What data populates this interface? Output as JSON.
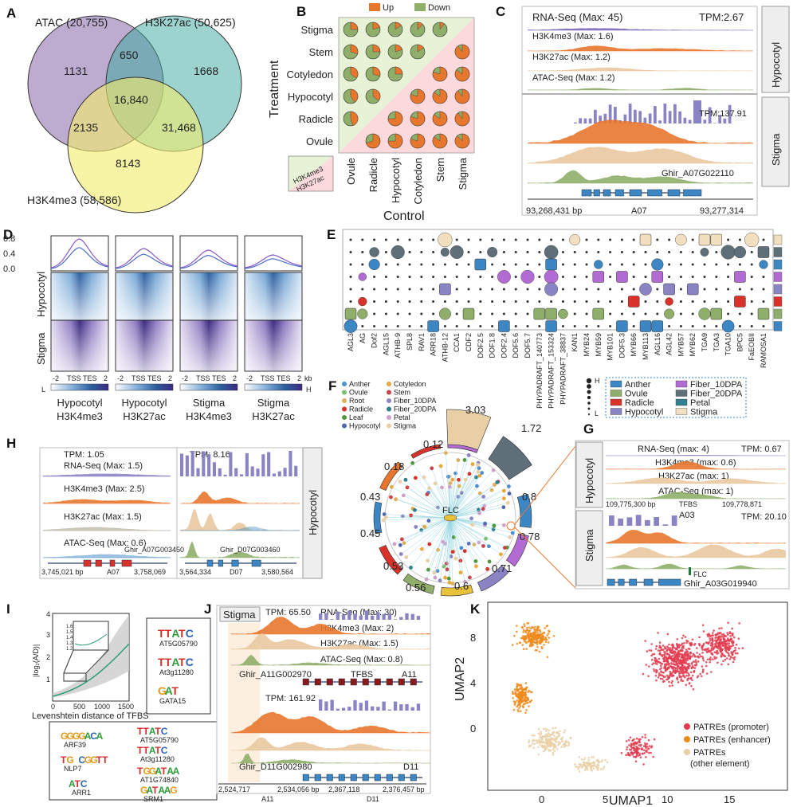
{
  "colors": {
    "purple": "#7b68b8",
    "orange": "#e8772e",
    "tan": "#e9c9a0",
    "green": "#8fae6a",
    "blue": "#3c86c4",
    "red": "#d9322b",
    "slate": "#5e6f7a",
    "violet": "#b26bd3",
    "teal": "#2f7f8f",
    "lav": "#8a84c4",
    "beige": "#f2dfbf"
  },
  "panelA": {
    "label": "A",
    "sets": [
      "ATAC (20,755)",
      "H3K27ac (50,625)",
      "H3K4me3 (58,586)"
    ],
    "regions": [
      "1131",
      "650",
      "1668",
      "16,840",
      "2135",
      "31,468",
      "8143"
    ]
  },
  "panelB": {
    "label": "B",
    "legend": [
      "Up",
      "Down"
    ],
    "rows": [
      "Stigma",
      "Stem",
      "Cotyledon",
      "Hypocotyl",
      "Radicle",
      "Ovule"
    ],
    "cols": [
      "Ovule",
      "Radicle",
      "Hypocotyl",
      "Cotyledon",
      "Stem",
      "Stigma"
    ],
    "ylabel": "Treatment",
    "xlabel": "Control",
    "key": [
      "H3K4me3",
      "H3K27ac"
    ]
  },
  "panelC": {
    "label": "C",
    "hyp_tracks": [
      "RNA-Seq (Max: 45)",
      "H3K4me3 (Max: 1.6)",
      "H3K27ac (Max: 1.2)",
      "ATAC-Seq (Max: 1.2)"
    ],
    "tpm_hyp": "TPM:2.67",
    "tpm_stigma": "TPM:137.91",
    "gene": "Ghir_A07G022110",
    "coord_start": "93,268,431 bp",
    "chrom": "A07",
    "coord_end": "93,277,314",
    "tissue1": "Hypocotyl",
    "tissue2": "Stigma"
  },
  "panelD": {
    "label": "D",
    "yticks": [
      "0.8",
      "0.4",
      "0.0"
    ],
    "rows": [
      "Hypocotyl",
      "Stigma"
    ],
    "xaxis": [
      "-2",
      "TSS",
      "TES",
      "2"
    ],
    "xunit": "kb",
    "scale": [
      "L",
      "H"
    ],
    "cols": [
      {
        "l1": "Hypocotyl",
        "l2": "H3K4me3"
      },
      {
        "l1": "Hypocotyl",
        "l2": "H3K27ac"
      },
      {
        "l1": "Stigma",
        "l2": "H3K4me3"
      },
      {
        "l1": "Stigma",
        "l2": "H3K27ac"
      }
    ]
  },
  "panelE": {
    "label": "E",
    "tfs": [
      "AGL3",
      "AG",
      "Dof2",
      "AGL15",
      "ATHB-9",
      "SPL8",
      "RAV1",
      "ARR18",
      "ATHB-12",
      "CCA1",
      "CDF2",
      "DOF2.5",
      "DOF1.8",
      "DOF2.4",
      "DOF5.6",
      "DOF5.7",
      "PHYPADRAFT_140773",
      "PHYPADRAFT_153324",
      "PHYPADRAFT_38837",
      "KAN1",
      "MYB24",
      "MYB59",
      "MYB101",
      "DOF5.3",
      "MYB66",
      "MYB113",
      "AGL16",
      "AGL42",
      "MYB57",
      "MYB62",
      "TGA9",
      "TGA3",
      "TGA10",
      "BPC5",
      "FaEOBII",
      "RAMOSA1"
    ],
    "size_key": [
      "H",
      "L"
    ],
    "legend": [
      "Anther",
      "Ovule",
      "Radicle",
      "Hypocotyl",
      "Fiber_10DPA",
      "Fiber_20DPA",
      "Petal",
      "Stigma"
    ]
  },
  "panelF": {
    "label": "F",
    "legend": [
      "Anther",
      "Cotyledon",
      "Ovule",
      "Stem",
      "Root",
      "Fiber_10DPA",
      "Radicle",
      "Fiber_20DPA",
      "Leaf",
      "Petal",
      "Hypocotyl",
      "Stigma"
    ],
    "center": "FLC",
    "values": [
      "3.03",
      "1.72",
      "0.8",
      "0.78",
      "0.71",
      "0.6",
      "0.56",
      "0.53",
      "0.45",
      "0.43",
      "0.18",
      "0.12"
    ]
  },
  "panelG": {
    "label": "G",
    "tracks": [
      "RNA-Seq (max: 4)",
      "H3K4me3 (max: 0.6)",
      "H3K27ac (max: 1)",
      "ATAC-Seq (max: 1)"
    ],
    "tpm1": "TPM: 0.67",
    "tpm2": "TPM: 20.10",
    "coord_start": "109,775,300 bp",
    "tfbs": "TFBS",
    "coord_end": "109,778,871",
    "chrom": "A03",
    "flc": "FLC",
    "gene": "Ghir_A03G019940",
    "tissue1": "Hypocotyl",
    "tissue2": "Stigma"
  },
  "panelH": {
    "label": "H",
    "tpm1": "TPM: 1.05",
    "tpm2": "TPM: 8.16",
    "tracks": [
      "RNA-Seq (Max: 1.5)",
      "H3K4me3 (Max: 2.5)",
      "H3K27ac (Max: 1.5)",
      "ATAC-Seq (Max: 0.6)"
    ],
    "gene1": "Ghir_A07G003450",
    "gene2": "Ghir_D07G003460",
    "c1": "3,745,021 bp",
    "chr1": "A07",
    "c2": "3,758,069",
    "c3": "3,564,334",
    "chr2": "D07",
    "c4": "3,580,564",
    "tissue": "Hypocotyl"
  },
  "panelI": {
    "label": "I",
    "ylabel": "|log₂(A/D)|",
    "xlabel": "Levenshtein distance of TFBS",
    "yticks": [
      "4",
      "3",
      "2",
      "1"
    ],
    "xticks": [
      "0",
      "500",
      "1000",
      "1500"
    ],
    "inset_yticks": [
      "1.6",
      "1.5",
      "1.4",
      "1.3",
      "1.2"
    ],
    "motifs_small": [
      {
        "logo": "TTATC",
        "name": "AT5G05790"
      },
      {
        "logo": "TTATC",
        "name": "At3g11280"
      },
      {
        "logo": "GAT",
        "name": "GATA15"
      }
    ],
    "motifs_big": [
      {
        "logo": "GGGGACA",
        "name": "ARF39"
      },
      {
        "logo": "TTATC",
        "name": "AT5G05790"
      },
      {
        "logo": "TG CGGTT",
        "name": "NLP7"
      },
      {
        "logo": "TTATC",
        "name": "At3g11280"
      },
      {
        "logo": "ATC",
        "name": "ARR1"
      },
      {
        "logo": "TGGATAA",
        "name": "AT1G74840"
      },
      {
        "logo": "GATAAG",
        "name": "SRM1"
      }
    ]
  },
  "panelJ": {
    "label": "J",
    "tissue": "Stigma",
    "tpm1": "TPM: 65.50",
    "tpm2": "TPM: 161.92",
    "tracks": [
      "RNA-Seq (Max: 30)",
      "H3K4me3 (Max: 2)",
      "H3K27ac (Max: 1.5)",
      "ATAC-Seq (Max: 0.8)"
    ],
    "gene1": "Ghir_A11G002970",
    "tfbs": "TFBS",
    "chr1": "A11",
    "gene2": "Ghir_D11G002980",
    "chr2": "D11",
    "c1": "2,524,717",
    "c2": "2,534,056 bp",
    "c3": "2,367,118",
    "c4": "2,376,457 bp"
  },
  "panelK": {
    "label": "K",
    "xlabel": "UMAP1",
    "ylabel": "UMAP2",
    "xticks": [
      "0",
      "5",
      "10",
      "15"
    ],
    "yticks": [
      "8",
      "4",
      "0"
    ],
    "legend": [
      "PATREs (promoter)",
      "PATREs (enhancer)",
      "PATREs",
      "(other element)"
    ]
  }
}
